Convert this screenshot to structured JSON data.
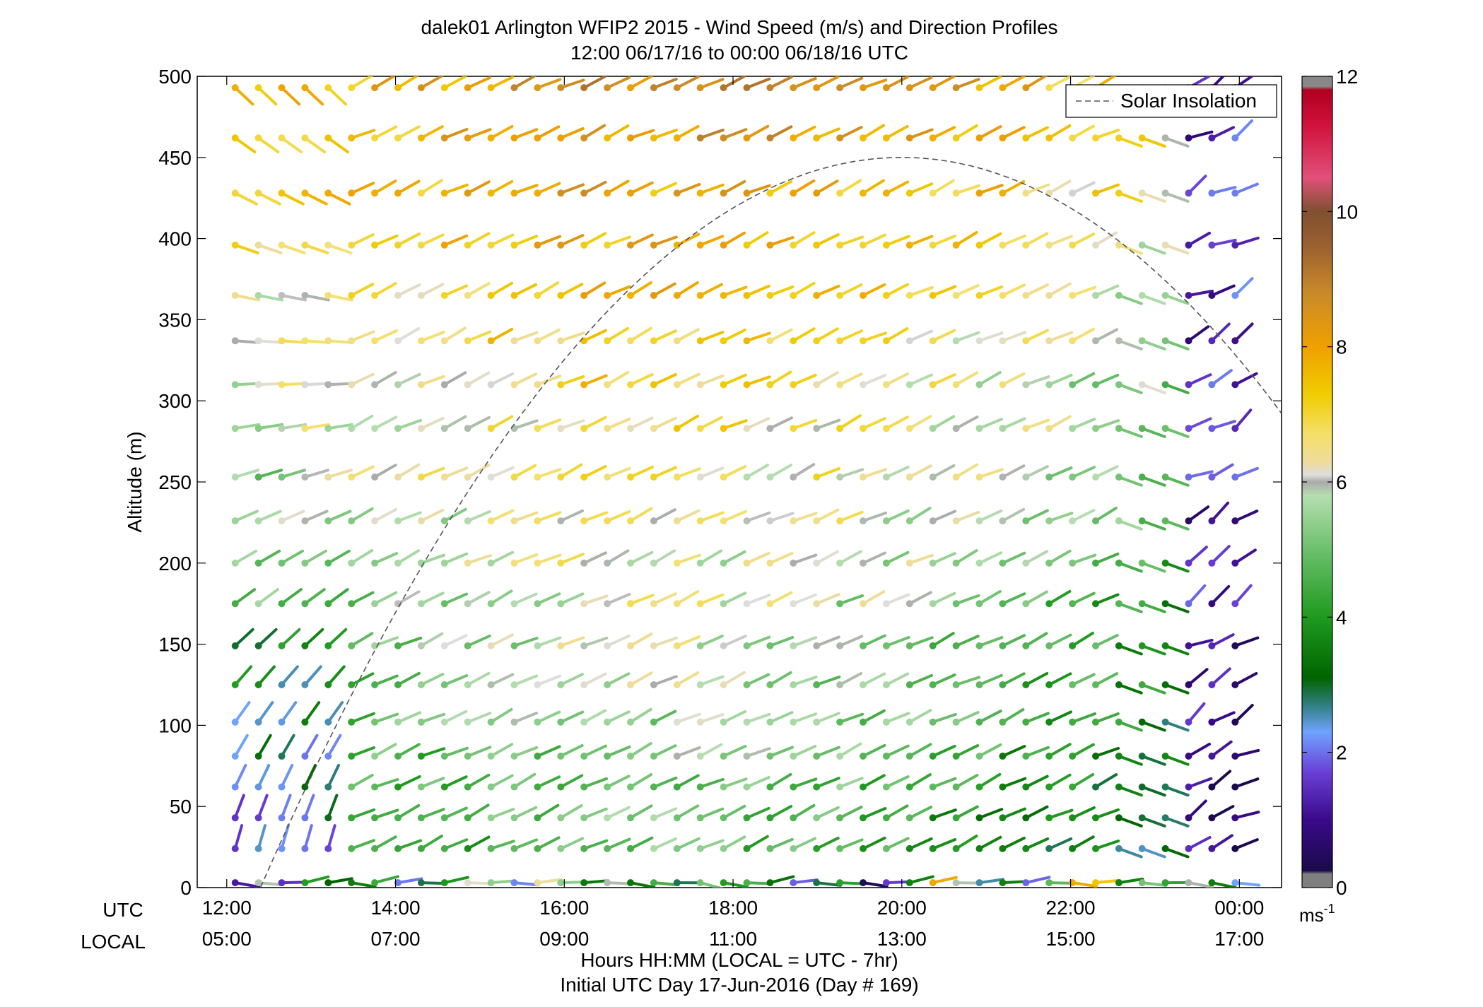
{
  "chart_data": {
    "type": "wind-barb-profile",
    "title": "dalek01 Arlington WFIP2 2015 - Wind Speed (m/s) and Direction Profiles",
    "subtitle": "12:00 06/17/16 to 00:00 06/18/16  UTC",
    "ylabel": "Altitude (m)",
    "xlabel": "Hours HH:MM  (LOCAL = UTC - 7hr)",
    "footer": "Initial UTC Day 17-Jun-2016 (Day # 169)",
    "xlim": [
      11.65,
      24.5
    ],
    "ylim": [
      0,
      500
    ],
    "grid": false,
    "utc_row_label": "UTC",
    "local_row_label": "LOCAL",
    "x_ticks_utc": [
      "12:00",
      "14:00",
      "16:00",
      "18:00",
      "20:00",
      "22:00",
      "00:00"
    ],
    "x_ticks_local": [
      "05:00",
      "07:00",
      "09:00",
      "11:00",
      "13:00",
      "15:00",
      "17:00"
    ],
    "x_tick_values": [
      12,
      14,
      16,
      18,
      20,
      22,
      24
    ],
    "y_ticks": [
      "0",
      "50",
      "100",
      "150",
      "200",
      "250",
      "300",
      "350",
      "400",
      "450",
      "500"
    ],
    "y_tick_values": [
      0,
      50,
      100,
      150,
      200,
      250,
      300,
      350,
      400,
      450,
      500
    ],
    "altitudes": [
      3,
      24,
      43,
      62,
      81,
      102,
      125,
      149,
      175,
      200,
      226,
      253,
      283,
      310,
      337,
      365,
      396,
      428,
      462,
      493
    ],
    "time_start": 12.1,
    "time_end": 23.95,
    "time_count": 44,
    "legend": {
      "label": "Solar Insolation",
      "position": "top-right"
    },
    "solar_insolation": {
      "peak_time": 20.0,
      "peak_altitude": 450,
      "rise_time": 12.4
    },
    "colorbar": {
      "min": 0,
      "max": 12,
      "ticks": [
        "0",
        "2",
        "4",
        "6",
        "8",
        "10",
        "12"
      ],
      "tick_values": [
        0,
        2,
        4,
        6,
        8,
        10,
        12
      ],
      "unit": "ms",
      "unit_exponent": "-1",
      "stops": [
        {
          "v": 0.0,
          "c": "#7f7f7f"
        },
        {
          "v": 0.2,
          "c": "#7f7f7f"
        },
        {
          "v": 0.25,
          "c": "#1a0a4a"
        },
        {
          "v": 1.0,
          "c": "#3a0a8a"
        },
        {
          "v": 1.7,
          "c": "#6a3ed6"
        },
        {
          "v": 2.3,
          "c": "#6fa3ff"
        },
        {
          "v": 2.7,
          "c": "#2f7f7f"
        },
        {
          "v": 3.1,
          "c": "#006400"
        },
        {
          "v": 4.0,
          "c": "#1f9a1f"
        },
        {
          "v": 5.0,
          "c": "#6cc06c"
        },
        {
          "v": 5.8,
          "c": "#b5deb0"
        },
        {
          "v": 6.0,
          "c": "#aaaaaa"
        },
        {
          "v": 6.1,
          "c": "#dddddd"
        },
        {
          "v": 6.3,
          "c": "#eedc9a"
        },
        {
          "v": 6.7,
          "c": "#f5e06a"
        },
        {
          "v": 7.3,
          "c": "#f0cc00"
        },
        {
          "v": 8.0,
          "c": "#f0a000"
        },
        {
          "v": 8.8,
          "c": "#c88a2a"
        },
        {
          "v": 9.5,
          "c": "#9a6030"
        },
        {
          "v": 10.0,
          "c": "#805030"
        },
        {
          "v": 10.5,
          "c": "#e0507a"
        },
        {
          "v": 11.3,
          "c": "#d0103a"
        },
        {
          "v": 11.8,
          "c": "#b00020"
        },
        {
          "v": 11.85,
          "c": "#888888"
        },
        {
          "v": 12.0,
          "c": "#888888"
        }
      ]
    }
  }
}
